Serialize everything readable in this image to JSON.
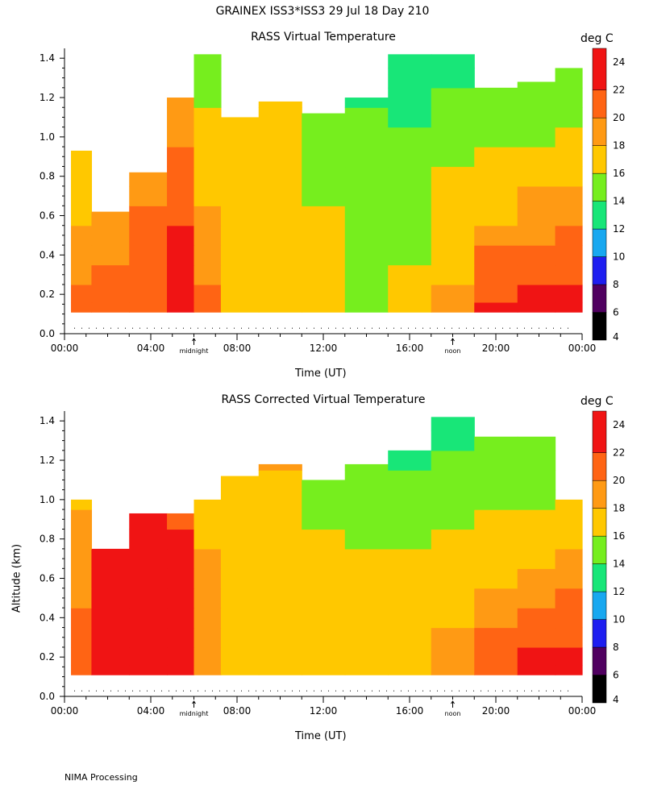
{
  "figure": {
    "title": "GRAINEX ISS3*ISS3  29 Jul 18 Day 210",
    "footer": "NIMA Processing"
  },
  "chart_data": [
    {
      "type": "heatmap",
      "title": "RASS Virtual Temperature",
      "xlabel": "Time (UT)",
      "ylabel": "",
      "xlim": [
        0,
        24
      ],
      "ylim": [
        0,
        1.45
      ],
      "x_tick_labels": [
        "00:00",
        "04:00",
        "08:00",
        "12:00",
        "16:00",
        "20:00",
        "00:00"
      ],
      "x_tick_values": [
        0,
        4,
        8,
        12,
        16,
        20,
        24
      ],
      "y_tick_labels": [
        "0.0",
        "0.2",
        "0.4",
        "0.6",
        "0.8",
        "1.0",
        "1.2",
        "1.4"
      ],
      "y_tick_values": [
        0,
        0.2,
        0.4,
        0.6,
        0.8,
        1.0,
        1.2,
        1.4
      ],
      "annotations": [
        {
          "text": "midnight",
          "x": 6
        },
        {
          "text": "noon",
          "x": 18
        }
      ],
      "colorbar": {
        "label": "deg C",
        "ticks": [
          4,
          6,
          8,
          10,
          12,
          14,
          16,
          18,
          20,
          22,
          24
        ]
      },
      "time_hours": [
        0.5,
        2,
        4,
        5.5,
        6.5,
        8,
        10,
        12,
        14,
        16,
        18,
        20,
        22,
        23.5
      ],
      "altitude_km": [
        0.12,
        0.2,
        0.3,
        0.4,
        0.5,
        0.6,
        0.7,
        0.8,
        0.9,
        1.0,
        1.1,
        1.2,
        1.3,
        1.4
      ],
      "top_km": [
        0.93,
        0.62,
        0.82,
        1.2,
        1.42,
        1.1,
        1.18,
        1.12,
        1.2,
        1.42,
        1.42,
        1.25,
        1.28,
        1.35
      ],
      "values_degC": [
        [
          20.5,
          21,
          21,
          22,
          20.5,
          17.5,
          17,
          16,
          15.5,
          16.5,
          19,
          22.5,
          23,
          23
        ],
        [
          20,
          20.5,
          20.5,
          23,
          20,
          17.5,
          17,
          16,
          15.5,
          16.5,
          18,
          21,
          22,
          22.5
        ],
        [
          19.5,
          20,
          20.5,
          23,
          19.5,
          17,
          16.5,
          16,
          15.5,
          16,
          17.5,
          20.5,
          21,
          21.5
        ],
        [
          18.5,
          19.5,
          20.5,
          23,
          19,
          16.5,
          16.5,
          16,
          15.5,
          15.5,
          17,
          20,
          20.5,
          21
        ],
        [
          18,
          19,
          20.5,
          22,
          18.5,
          16.5,
          16,
          16,
          15.5,
          15.5,
          16.5,
          18.5,
          19.5,
          20.5
        ],
        [
          17.5,
          18,
          20,
          21,
          18,
          16,
          16,
          16,
          15,
          15,
          16,
          17.5,
          18.5,
          19
        ],
        [
          17,
          17.5,
          19.5,
          20.5,
          17.5,
          16,
          16,
          15.5,
          14.5,
          14.5,
          16,
          17,
          18,
          18.5
        ],
        [
          17,
          17.5,
          19,
          20,
          17,
          16.5,
          16,
          15,
          14.5,
          14.5,
          16,
          16.5,
          17,
          17.5
        ],
        [
          16.5,
          17.5,
          18.5,
          20,
          17,
          16.5,
          16,
          14.5,
          14,
          14,
          15.5,
          16,
          16.5,
          17
        ],
        [
          16.5,
          17,
          18,
          19.5,
          17,
          16.5,
          16.5,
          14.5,
          14,
          14,
          15,
          15,
          15.5,
          16
        ],
        [
          16.5,
          17,
          18,
          19,
          16,
          16.5,
          17,
          14.5,
          14,
          13.5,
          14.5,
          14.5,
          15,
          15
        ],
        [
          16.5,
          17,
          18,
          19,
          15.5,
          16.5,
          17,
          14.5,
          13.5,
          13,
          14,
          14,
          14,
          14.5
        ],
        [
          16.5,
          17,
          18,
          18.5,
          15,
          16,
          16,
          14.5,
          13.5,
          13,
          13.5,
          14,
          14,
          14
        ],
        [
          16.5,
          17,
          18,
          18.5,
          14.5,
          15.5,
          15.5,
          14,
          13.5,
          13,
          13,
          14,
          14,
          14
        ]
      ]
    },
    {
      "type": "heatmap",
      "title": "RASS Corrected Virtual Temperature",
      "xlabel": "Time (UT)",
      "ylabel": "Altitude (km)",
      "xlim": [
        0,
        24
      ],
      "ylim": [
        0,
        1.45
      ],
      "x_tick_labels": [
        "00:00",
        "04:00",
        "08:00",
        "12:00",
        "16:00",
        "20:00",
        "00:00"
      ],
      "x_tick_values": [
        0,
        4,
        8,
        12,
        16,
        20,
        24
      ],
      "y_tick_labels": [
        "0.0",
        "0.2",
        "0.4",
        "0.6",
        "0.8",
        "1.0",
        "1.2",
        "1.4"
      ],
      "y_tick_values": [
        0,
        0.2,
        0.4,
        0.6,
        0.8,
        1.0,
        1.2,
        1.4
      ],
      "annotations": [
        {
          "text": "midnight",
          "x": 6
        },
        {
          "text": "noon",
          "x": 18
        }
      ],
      "colorbar": {
        "label": "deg C",
        "ticks": [
          4,
          6,
          8,
          10,
          12,
          14,
          16,
          18,
          20,
          22,
          24
        ]
      },
      "time_hours": [
        0.5,
        2,
        4,
        5.5,
        6.5,
        8,
        10,
        12,
        14,
        16,
        18,
        20,
        22,
        23.5
      ],
      "altitude_km": [
        0.12,
        0.2,
        0.3,
        0.4,
        0.5,
        0.6,
        0.7,
        0.8,
        0.9,
        1.0,
        1.1,
        1.2,
        1.3,
        1.4
      ],
      "top_km": [
        1.0,
        0.75,
        0.93,
        0.93,
        1.0,
        1.12,
        1.18,
        1.1,
        1.18,
        1.25,
        1.42,
        1.32,
        1.32,
        1.0
      ],
      "values_degC": [
        [
          20.5,
          23,
          23.5,
          23,
          19.5,
          17.5,
          17.5,
          16.5,
          16,
          17,
          19,
          21.5,
          22.5,
          23
        ],
        [
          20.5,
          23,
          23.5,
          23,
          19.5,
          17.5,
          17.5,
          16.5,
          16,
          17,
          18.5,
          21,
          22,
          22.5
        ],
        [
          20.5,
          23,
          23.5,
          23,
          19.5,
          17.5,
          17,
          16.5,
          16,
          16.5,
          18,
          20.5,
          21,
          21.5
        ],
        [
          20,
          23,
          23.5,
          23,
          19,
          17.5,
          17,
          16.5,
          16,
          16.5,
          17.5,
          19.5,
          20.5,
          21
        ],
        [
          19.5,
          23,
          23.5,
          23,
          18.5,
          17,
          17,
          16.5,
          16,
          16,
          17,
          18.5,
          19.5,
          20.5
        ],
        [
          19.5,
          23,
          23.5,
          23,
          18,
          17,
          17,
          16.5,
          16,
          16,
          16.5,
          17.5,
          18.5,
          19
        ],
        [
          19,
          23,
          23.5,
          22.5,
          18,
          17,
          17,
          16,
          16,
          16,
          16.5,
          17,
          17.5,
          18
        ],
        [
          18.5,
          22,
          23.5,
          22,
          17.5,
          17,
          17,
          16,
          15.5,
          15.5,
          16,
          16.5,
          17,
          17.5
        ],
        [
          18,
          21,
          23,
          21.5,
          17.5,
          17,
          17,
          15.5,
          14.5,
          15,
          15.5,
          16,
          16.5,
          17
        ],
        [
          17.5,
          21,
          23,
          21,
          17.5,
          17,
          17,
          15,
          14.5,
          14.5,
          15,
          15.5,
          15.5,
          16
        ],
        [
          17.5,
          21,
          23,
          21,
          17,
          17,
          17.5,
          14.5,
          14,
          14,
          14.5,
          14.5,
          14.5,
          15
        ],
        [
          17.5,
          21,
          23,
          21,
          17,
          17,
          18,
          14.5,
          14,
          13.5,
          14,
          14,
          14.5,
          14.5
        ],
        [
          17.5,
          21,
          23,
          21,
          17,
          17,
          18,
          14.5,
          14,
          13,
          13.5,
          14,
          14,
          14
        ],
        [
          17.5,
          21,
          23,
          21,
          17,
          17,
          18,
          14.5,
          14,
          13,
          13,
          14,
          14,
          14
        ]
      ]
    }
  ]
}
